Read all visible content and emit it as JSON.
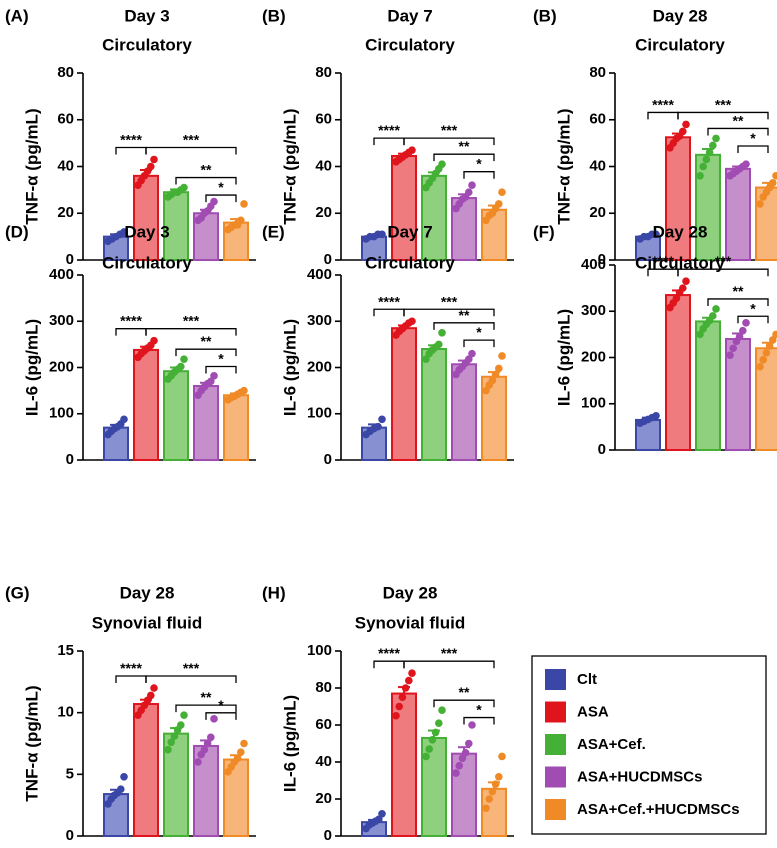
{
  "groups": [
    "Clt",
    "ASA",
    "ASA+Cef.",
    "ASA+HUCDMSCs",
    "ASA+Cef.+HUCDMSCs"
  ],
  "colors": {
    "bar": [
      "#8790d0",
      "#f07b7e",
      "#8ed07e",
      "#c58fcc",
      "#f8b57a"
    ],
    "edge": [
      "#3a47a6",
      "#e0141c",
      "#44b035",
      "#a04cb2",
      "#ef8a26"
    ]
  },
  "significance": [
    "****",
    "***",
    "**",
    "*"
  ],
  "chart_data": [
    {
      "type": "bar",
      "label": "(A)",
      "title": "Day 3",
      "subtitle": "Circulatory",
      "ylabel": "TNF-α (pg/mL)",
      "ylim": [
        0,
        80
      ],
      "yticks": [
        0,
        20,
        40,
        60,
        80
      ],
      "values": [
        10,
        36,
        29,
        20,
        16
      ],
      "sem": [
        1,
        2.5,
        1.2,
        1.5,
        1.5
      ],
      "points": [
        [
          8,
          9,
          10,
          11,
          12
        ],
        [
          32,
          34,
          36,
          38,
          40,
          43
        ],
        [
          27,
          28,
          29,
          29,
          30,
          31
        ],
        [
          17,
          18,
          20,
          21,
          23,
          25
        ],
        [
          13,
          14,
          15,
          15,
          17,
          24
        ]
      ]
    },
    {
      "type": "bar",
      "label": "(B)",
      "title": "Day 7",
      "subtitle": "Circulatory",
      "ylabel": "TNF-α (pg/mL)",
      "ylim": [
        0,
        80
      ],
      "yticks": [
        0,
        20,
        40,
        60,
        80
      ],
      "values": [
        10,
        44.5,
        36,
        26.5,
        21.5
      ],
      "sem": [
        0.6,
        1,
        1.5,
        1.6,
        1.8
      ],
      "points": [
        [
          9,
          10,
          10,
          11,
          11
        ],
        [
          42,
          43,
          44,
          45,
          46,
          47
        ],
        [
          31,
          33,
          35,
          37,
          39,
          41
        ],
        [
          22,
          24,
          26,
          27,
          29,
          32
        ],
        [
          17,
          19,
          20,
          22,
          24,
          29
        ]
      ]
    },
    {
      "type": "bar",
      "label": "(B)",
      "title": "Day 28",
      "subtitle": "Circulatory",
      "ylabel": "TNF-α (pg/mL)",
      "ylim": [
        0,
        80
      ],
      "yticks": [
        0,
        20,
        40,
        60,
        80
      ],
      "values": [
        10,
        52.5,
        45,
        39,
        31
      ],
      "sem": [
        0.6,
        1.6,
        2.5,
        1,
        2
      ],
      "points": [
        [
          9,
          10,
          10,
          11,
          11
        ],
        [
          48,
          50,
          52,
          53,
          55,
          58
        ],
        [
          36,
          40,
          43,
          46,
          49,
          52
        ],
        [
          36,
          37,
          38,
          39,
          40,
          41
        ],
        [
          24,
          27,
          29,
          31,
          33,
          36
        ]
      ]
    },
    {
      "type": "bar",
      "label": "(D)",
      "title": "Day 3",
      "subtitle": "Circulatory",
      "ylabel": "IL-6 (pg/mL)",
      "ylim": [
        0,
        400
      ],
      "yticks": [
        0,
        100,
        200,
        300,
        400
      ],
      "values": [
        70,
        238,
        192,
        160,
        140
      ],
      "sem": [
        6,
        7,
        8,
        7,
        4
      ],
      "points": [
        [
          55,
          62,
          68,
          72,
          78,
          88
        ],
        [
          222,
          230,
          236,
          242,
          248,
          258
        ],
        [
          175,
          182,
          190,
          196,
          202,
          218
        ],
        [
          140,
          150,
          158,
          165,
          170,
          182
        ],
        [
          130,
          135,
          138,
          142,
          146,
          150
        ]
      ]
    },
    {
      "type": "bar",
      "label": "(E)",
      "title": "Day 7",
      "subtitle": "Circulatory",
      "ylabel": "IL-6 (pg/mL)",
      "ylim": [
        0,
        400
      ],
      "yticks": [
        0,
        100,
        200,
        300,
        400
      ],
      "values": [
        70,
        285,
        240,
        207,
        180
      ],
      "sem": [
        7,
        6,
        8,
        8,
        10
      ],
      "points": [
        [
          55,
          62,
          68,
          72,
          88
        ],
        [
          270,
          278,
          284,
          290,
          296,
          300
        ],
        [
          218,
          230,
          238,
          244,
          250,
          275
        ],
        [
          185,
          195,
          202,
          210,
          218,
          230
        ],
        [
          150,
          162,
          172,
          185,
          198,
          225
        ]
      ]
    },
    {
      "type": "bar",
      "label": "(F)",
      "title": "Day 28",
      "subtitle": "Circulatory",
      "ylabel": "IL-6 (pg/mL)",
      "ylim": [
        0,
        400
      ],
      "yticks": [
        0,
        100,
        200,
        300,
        400
      ],
      "values": [
        65,
        335,
        278,
        240,
        220
      ],
      "sem": [
        5,
        10,
        8,
        12,
        12
      ],
      "points": [
        [
          58,
          62,
          66,
          70,
          74
        ],
        [
          308,
          318,
          328,
          340,
          350,
          365
        ],
        [
          250,
          262,
          272,
          280,
          290,
          305
        ],
        [
          205,
          220,
          235,
          245,
          258,
          275
        ],
        [
          180,
          195,
          210,
          225,
          238,
          250
        ]
      ]
    },
    {
      "type": "bar",
      "label": "(G)",
      "title": "Day 28",
      "subtitle": "Synovial fluid",
      "ylabel": "TNF-α (pg/mL)",
      "ylim": [
        0,
        15
      ],
      "yticks": [
        0,
        5,
        10,
        15
      ],
      "values": [
        3.4,
        10.7,
        8.3,
        7.3,
        6.2
      ],
      "sem": [
        0.35,
        0.35,
        0.45,
        0.45,
        0.35
      ],
      "points": [
        [
          2.6,
          3,
          3.3,
          3.5,
          3.8,
          4.8
        ],
        [
          9.8,
          10.2,
          10.6,
          11,
          11.4,
          12
        ],
        [
          7,
          7.6,
          8.1,
          8.6,
          9,
          9.8
        ],
        [
          6,
          6.6,
          7,
          7.5,
          8,
          9.5
        ],
        [
          5.2,
          5.6,
          6,
          6.3,
          6.8,
          7.5
        ]
      ]
    },
    {
      "type": "bar",
      "label": "(H)",
      "title": "Day 28",
      "subtitle": "Synovial fluid",
      "ylabel": "IL-6 (pg/mL)",
      "ylim": [
        0,
        100
      ],
      "yticks": [
        0,
        20,
        40,
        60,
        80,
        100
      ],
      "values": [
        7.5,
        77,
        53,
        44.5,
        25.5
      ],
      "sem": [
        1.2,
        3.5,
        4,
        3.5,
        3.5
      ],
      "points": [
        [
          4,
          6,
          7,
          8,
          9,
          12
        ],
        [
          65,
          70,
          75,
          80,
          84,
          88
        ],
        [
          43,
          47,
          52,
          56,
          61,
          68
        ],
        [
          34,
          38,
          42,
          45,
          50,
          60
        ],
        [
          15,
          20,
          24,
          28,
          32,
          43
        ]
      ]
    }
  ]
}
